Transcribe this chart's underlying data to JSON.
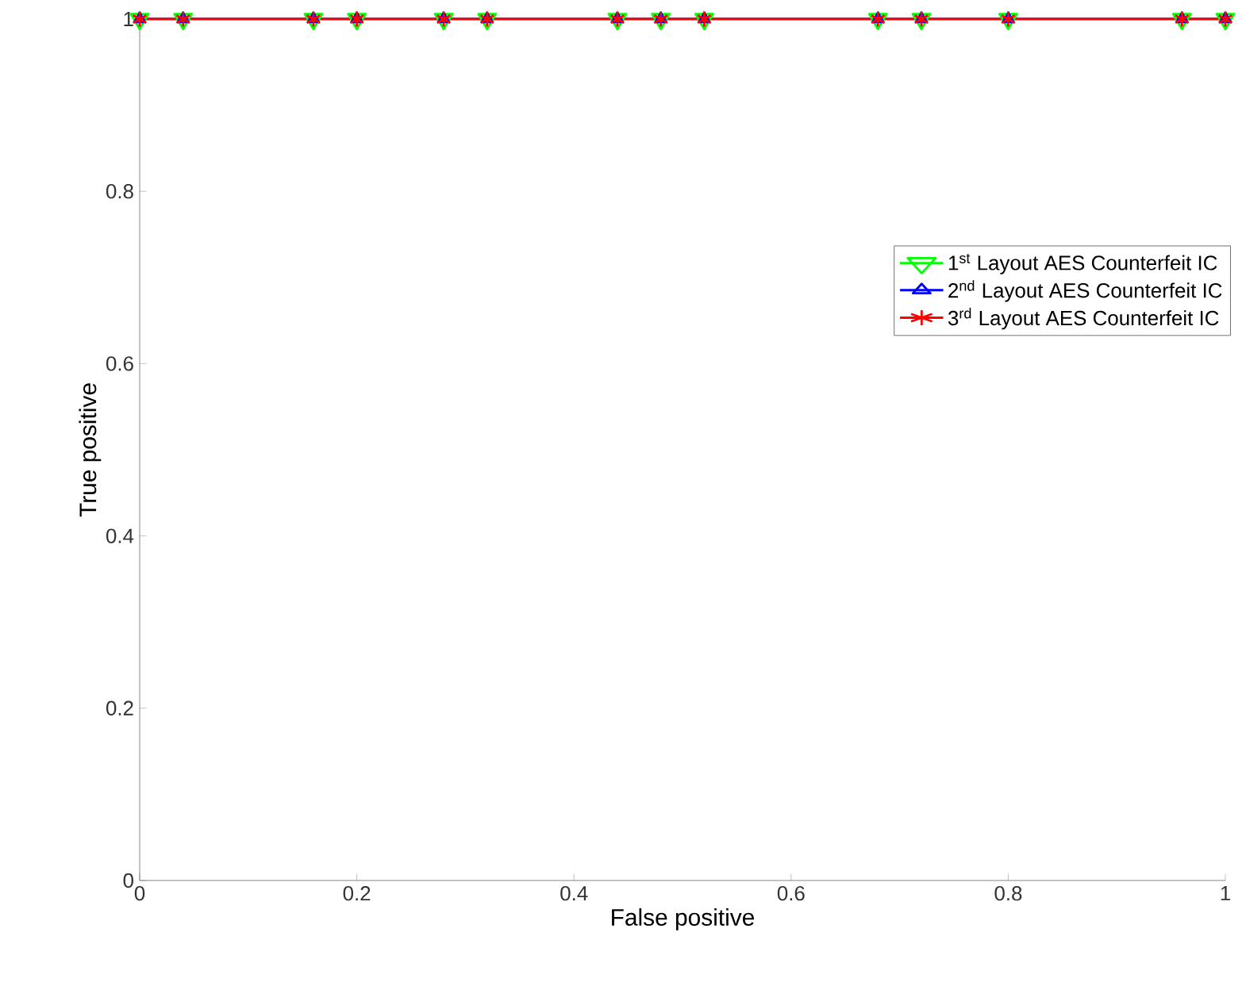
{
  "chart_data": {
    "type": "line",
    "xlabel": "False positive",
    "ylabel": "True positive",
    "xlim": [
      0,
      1
    ],
    "ylim": [
      0,
      1
    ],
    "xticks": [
      0,
      0.2,
      0.4,
      0.6,
      0.8,
      1
    ],
    "yticks": [
      0,
      0.2,
      0.4,
      0.6,
      0.8,
      1
    ],
    "grid": false,
    "legend": "right",
    "line_style": "solid",
    "x": [
      0,
      0.04,
      0.16,
      0.2,
      0.28,
      0.32,
      0.44,
      0.48,
      0.52,
      0.68,
      0.72,
      0.8,
      0.96,
      1
    ],
    "series": [
      {
        "name": "1$^{st}$ Layout AES Counterfeit IC",
        "color": "#00ff00",
        "marker": "triangle down",
        "values": [
          1,
          1,
          1,
          1,
          1,
          1,
          1,
          1,
          1,
          1,
          1,
          1,
          1,
          1
        ]
      },
      {
        "name": "2$^{nd}$ Layout AES Counterfeit IC",
        "color": "#0000ff",
        "marker": "triangle",
        "values": [
          1,
          1,
          1,
          1,
          1,
          1,
          1,
          1,
          1,
          1,
          1,
          1,
          1,
          1
        ]
      },
      {
        "name": "3$^{rd}$ Layout AES Counterfeit IC",
        "color": "#ff0000",
        "marker": "cross",
        "values": [
          1,
          1,
          1,
          1,
          1,
          1,
          1,
          1,
          1,
          1,
          1,
          1,
          1,
          1
        ]
      }
    ]
  }
}
